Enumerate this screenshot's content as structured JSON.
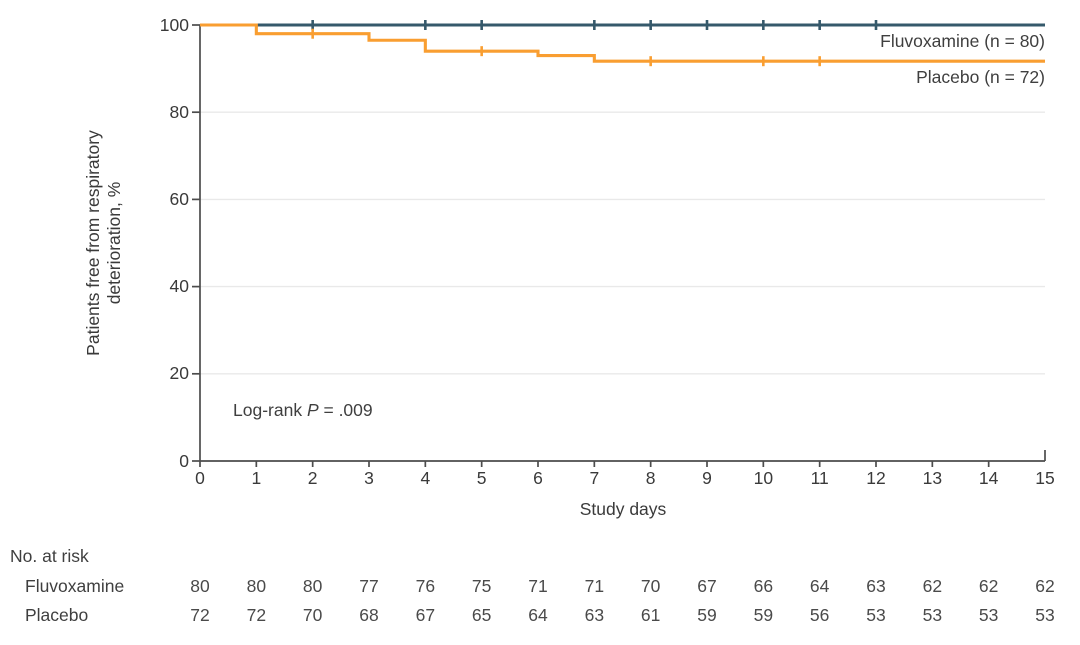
{
  "figure": {
    "legend": {
      "fluvoxamine_label": "Fluvoxamine (n = 80)",
      "placebo_label": "Placebo (n = 72)"
    },
    "annotation": {
      "prefix": "Log-rank ",
      "p_symbol": "P",
      "value": " = .009"
    },
    "axes": {
      "xlabel": "Study days",
      "ylabel_line1": "Patients free from respiratory",
      "ylabel_line2": "deterioration, %"
    },
    "risk_table_title": "No. at risk",
    "risk_row1_label": "Fluvoxamine",
    "risk_row2_label": "Placebo"
  },
  "colors": {
    "fluvoxamine": "#35596B",
    "placebo": "#F99E31",
    "axis": "#4C4C4C",
    "grid": "#E9E9E9",
    "text": "#3A3A3A"
  },
  "chart_data": {
    "type": "line",
    "subtype": "kaplan-meier-step",
    "title": "",
    "xlabel": "Study days",
    "ylabel": "Patients free from respiratory deterioration, %",
    "xlim": [
      0,
      15
    ],
    "ylim": [
      0,
      100
    ],
    "xticks": [
      0,
      1,
      2,
      3,
      4,
      5,
      6,
      7,
      8,
      9,
      10,
      11,
      12,
      13,
      14,
      15
    ],
    "yticks": [
      0,
      20,
      40,
      60,
      80,
      100
    ],
    "grid": {
      "horizontal_at": [
        20,
        40,
        60,
        80
      ],
      "vertical": false
    },
    "legend_position": "inside-top-right",
    "annotation": "Log-rank P = .009",
    "series": [
      {
        "name": "Fluvoxamine (n = 80)",
        "color": "#35596B",
        "points": [
          [
            0,
            100
          ],
          [
            15,
            100
          ]
        ],
        "censor_marks": [
          [
            2,
            100
          ],
          [
            4,
            100
          ],
          [
            5,
            100
          ],
          [
            7,
            100
          ],
          [
            8,
            100
          ],
          [
            9,
            100
          ],
          [
            10,
            100
          ],
          [
            11,
            100
          ],
          [
            12,
            100
          ]
        ]
      },
      {
        "name": "Placebo (n = 72)",
        "color": "#F99E31",
        "points": [
          [
            0,
            100
          ],
          [
            1,
            100
          ],
          [
            1,
            98
          ],
          [
            3,
            98
          ],
          [
            3,
            96.5
          ],
          [
            4,
            96.5
          ],
          [
            4,
            94
          ],
          [
            6,
            94
          ],
          [
            6,
            93
          ],
          [
            7,
            93
          ],
          [
            7,
            91.7
          ],
          [
            15,
            91.7
          ]
        ],
        "censor_marks": [
          [
            2,
            98
          ],
          [
            5,
            94
          ],
          [
            8,
            91.7
          ],
          [
            10,
            91.7
          ],
          [
            11,
            91.7
          ]
        ]
      }
    ],
    "risk_table": {
      "title": "No. at risk",
      "days": [
        0,
        1,
        2,
        3,
        4,
        5,
        6,
        7,
        8,
        9,
        10,
        11,
        12,
        13,
        14,
        15
      ],
      "rows": [
        {
          "name": "Fluvoxamine",
          "values": [
            80,
            80,
            80,
            77,
            76,
            75,
            71,
            71,
            70,
            67,
            66,
            64,
            63,
            62,
            62,
            62
          ]
        },
        {
          "name": "Placebo",
          "values": [
            72,
            72,
            70,
            68,
            67,
            65,
            64,
            63,
            61,
            59,
            59,
            56,
            53,
            53,
            53,
            53
          ]
        }
      ]
    }
  }
}
